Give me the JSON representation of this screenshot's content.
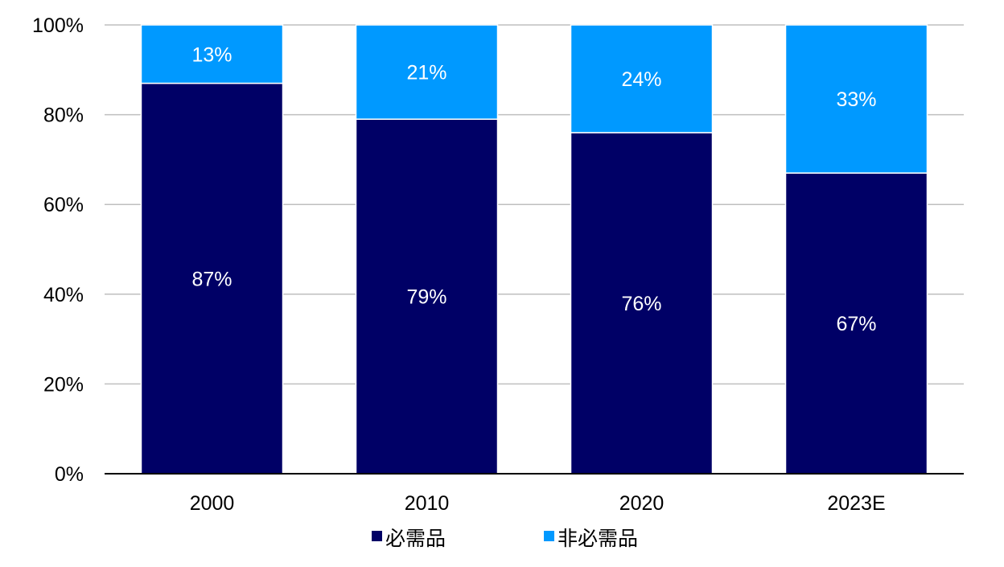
{
  "chart_data": {
    "type": "bar",
    "stacked": true,
    "categories": [
      "2000",
      "2010",
      "2020",
      "2023E"
    ],
    "series": [
      {
        "name": "必需品",
        "values": [
          87,
          79,
          76,
          67
        ],
        "labels": [
          "87%",
          "79%",
          "76%",
          "67%"
        ],
        "color": "#000066"
      },
      {
        "name": "非必需品",
        "values": [
          13,
          21,
          24,
          33
        ],
        "labels": [
          "13%",
          "21%",
          "24%",
          "33%"
        ],
        "color": "#0099ff"
      }
    ],
    "yticks": [
      0,
      20,
      40,
      60,
      80,
      100
    ],
    "ytick_labels": [
      "0%",
      "20%",
      "40%",
      "60%",
      "80%",
      "100%"
    ],
    "ylim": [
      0,
      100
    ],
    "grid": true,
    "legend": "bottom-center",
    "title": "",
    "xlabel": "",
    "ylabel": ""
  }
}
